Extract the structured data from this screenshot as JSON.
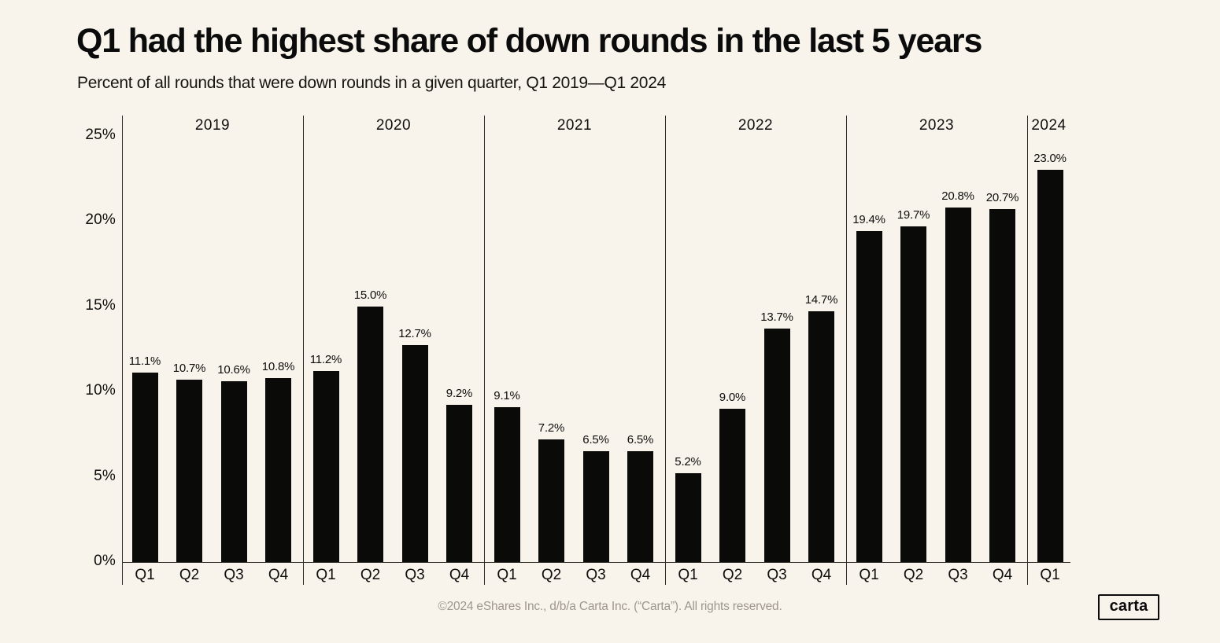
{
  "page": {
    "background": "#F8F4EC",
    "footer": "©2024 eShares Inc., d/b/a Carta Inc. (“Carta”). All rights reserved.",
    "logo_text": "carta"
  },
  "chart_data": {
    "type": "bar",
    "title": "Q1 had the highest share of down rounds in the last 5 years",
    "subtitle": "Percent of all rounds that were down rounds in a given quarter, Q1 2019—Q1 2024",
    "xlabel": "",
    "ylabel": "",
    "ylim": [
      0,
      26.2
    ],
    "yticks": [
      0,
      5,
      10,
      15,
      20,
      25
    ],
    "ytick_suffix": "%",
    "grid": false,
    "legend": "none",
    "bar_color": "#0a0a09",
    "value_suffix": "%",
    "groups": [
      {
        "year": "2019",
        "categories": [
          "Q1",
          "Q2",
          "Q3",
          "Q4"
        ],
        "values": [
          11.1,
          10.7,
          10.6,
          10.8
        ]
      },
      {
        "year": "2020",
        "categories": [
          "Q1",
          "Q2",
          "Q3",
          "Q4"
        ],
        "values": [
          11.2,
          15.0,
          12.7,
          9.2
        ]
      },
      {
        "year": "2021",
        "categories": [
          "Q1",
          "Q2",
          "Q3",
          "Q4"
        ],
        "values": [
          9.1,
          7.2,
          6.5,
          6.5
        ]
      },
      {
        "year": "2022",
        "categories": [
          "Q1",
          "Q2",
          "Q3",
          "Q4"
        ],
        "values": [
          5.2,
          9.0,
          13.7,
          14.7
        ]
      },
      {
        "year": "2023",
        "categories": [
          "Q1",
          "Q2",
          "Q3",
          "Q4"
        ],
        "values": [
          19.4,
          19.7,
          20.8,
          20.7
        ]
      },
      {
        "year": "2024",
        "categories": [
          "Q1"
        ],
        "values": [
          23.0
        ]
      }
    ]
  }
}
